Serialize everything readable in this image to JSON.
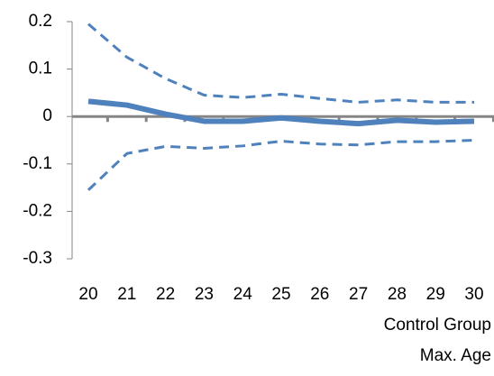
{
  "chart_data": {
    "type": "line",
    "categories": [
      "20",
      "21",
      "22",
      "23",
      "24",
      "25",
      "26",
      "27",
      "28",
      "29",
      "30"
    ],
    "series": [
      {
        "color": "#4f81bd",
        "style": "solid",
        "values": [
          0.032,
          0.024,
          0.005,
          -0.01,
          -0.01,
          -0.003,
          -0.01,
          -0.015,
          -0.008,
          -0.012,
          -0.01
        ]
      },
      {
        "color": "#4f81bd",
        "style": "dashed",
        "values": [
          0.195,
          0.125,
          0.08,
          0.045,
          0.04,
          0.047,
          0.038,
          0.03,
          0.035,
          0.03,
          0.03
        ]
      },
      {
        "color": "#4f81bd",
        "style": "dashed",
        "values": [
          -0.155,
          -0.078,
          -0.063,
          -0.067,
          -0.062,
          -0.052,
          -0.058,
          -0.06,
          -0.053,
          -0.053,
          -0.05
        ]
      }
    ],
    "xlabel": [
      "Control Group",
      "Max. Age"
    ],
    "ylim": [
      -0.3,
      0.2
    ],
    "yticks": [
      0.2,
      0.1,
      0,
      -0.1,
      -0.2,
      -0.3
    ],
    "grid": false
  }
}
